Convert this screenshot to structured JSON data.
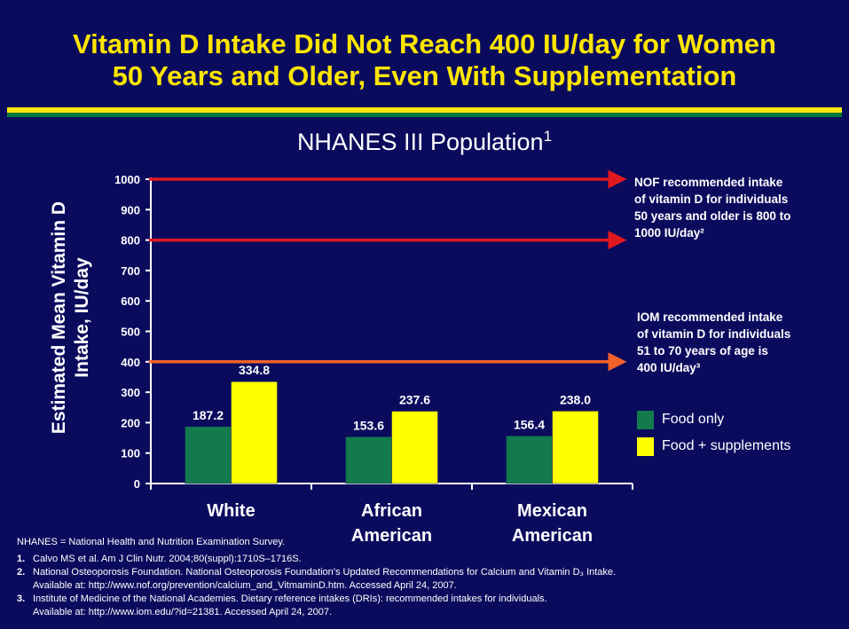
{
  "title": {
    "line1": "Vitamin D Intake Did Not Reach 400 IU/day for Women",
    "line2": "50 Years and Older, Even With Supplementation"
  },
  "subtitle": {
    "text": "NHANES III Population",
    "sup": "1"
  },
  "colors": {
    "background": "#0b0b5e",
    "title": "#ffe600",
    "food_only": "#137a4e",
    "food_supplements": "#ffff00",
    "nof_arrow": "#e0191e",
    "iom_arrow": "#f2612a"
  },
  "chart_data": {
    "type": "bar",
    "categories": [
      "White",
      "African American",
      "Mexican American"
    ],
    "category_lines": [
      [
        "White"
      ],
      [
        "African",
        "American"
      ],
      [
        "Mexican",
        "American"
      ]
    ],
    "series": [
      {
        "name": "Food only",
        "values": [
          187.2,
          153.6,
          156.4
        ],
        "labels": [
          "187.2",
          "153.6",
          "156.4"
        ]
      },
      {
        "name": "Food + supplements",
        "values": [
          334.8,
          237.6,
          238.0
        ],
        "labels": [
          "334.8",
          "237.6",
          "238.0"
        ]
      }
    ],
    "ylabel_lines": [
      "Estimated Mean Vitamin D",
      "Intake, IU/day"
    ],
    "ylim": [
      0,
      1000
    ],
    "yticks": [
      0,
      100,
      200,
      300,
      400,
      500,
      600,
      700,
      800,
      900,
      1000
    ],
    "reference_lines": [
      {
        "value": 1000,
        "color": "#e0191e"
      },
      {
        "value": 800,
        "color": "#e0191e"
      },
      {
        "value": 400,
        "color": "#f2612a"
      }
    ],
    "legend_position": "right"
  },
  "annotations": {
    "nof": [
      "NOF recommended intake",
      "of vitamin D for individuals",
      "50 years and older is 800 to",
      "1000 IU/day²"
    ],
    "iom": [
      "IOM recommended intake",
      "of vitamin D for individuals",
      "51 to 70 years of age is",
      "400 IU/day³"
    ]
  },
  "footer": {
    "definition": "NHANES = National Health and Nutrition Examination Survey.",
    "refs": [
      {
        "num": "1.",
        "lines": [
          "Calvo MS et al. Am J Clin Nutr. 2004;80(suppl):1710S–1716S."
        ]
      },
      {
        "num": "2.",
        "lines": [
          "National Osteoporosis Foundation. National Osteoporosis Foundation’s Updated Recommendations for Calcium and Vitamin D₃ Intake.",
          "Available at: http://www.nof.org/prevention/calcium_and_VitmaminD.htm. Accessed April 24, 2007."
        ]
      },
      {
        "num": "3.",
        "lines": [
          "Institute of Medicine of the National Academies. Dietary reference intakes (DRIs): recommended intakes for individuals.",
          "Available at: http://www.iom.edu/?id=21381. Accessed April 24, 2007."
        ]
      }
    ]
  }
}
